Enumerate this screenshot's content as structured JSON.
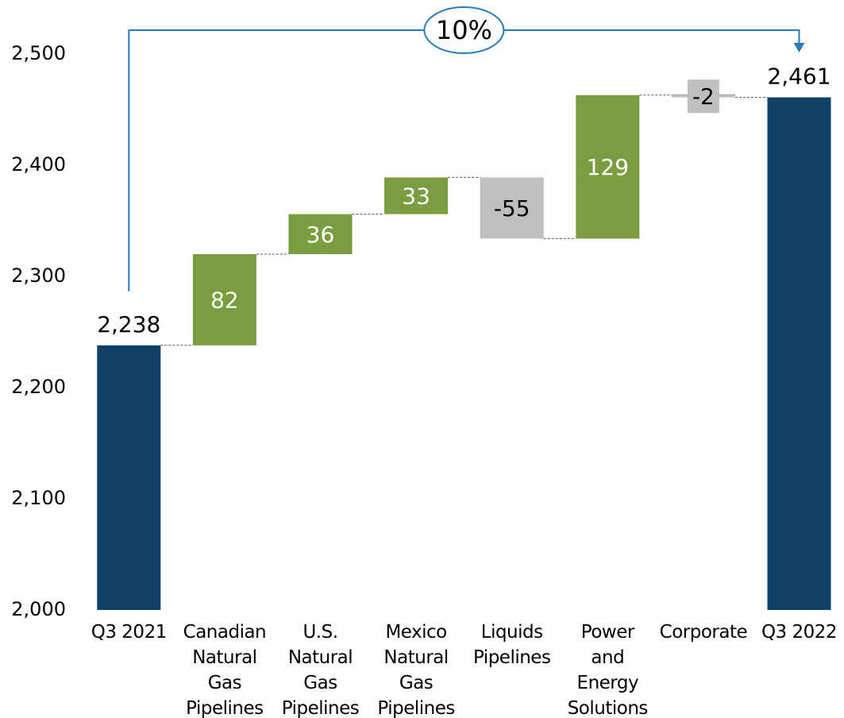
{
  "chart_data": {
    "type": "waterfall",
    "categories": [
      "Q3 2021",
      "Canadian\nNatural\nGas\nPipelines",
      "U.S.\nNatural\nGas\nPipelines",
      "Mexico\nNatural\nGas\nPipelines",
      "Liquids\nPipelines",
      "Power\nand\nEnergy\nSolutions",
      "Corporate",
      "Q3 2022"
    ],
    "values": [
      2238,
      82,
      36,
      33,
      -55,
      129,
      -2,
      2461
    ],
    "value_labels": [
      "2,238",
      "82",
      "36",
      "33",
      "-55",
      "129",
      "-2",
      "2,461"
    ],
    "measure": [
      "absolute",
      "relative",
      "relative",
      "relative",
      "relative",
      "relative",
      "relative",
      "total"
    ],
    "colors": {
      "total": "#0f3e66",
      "increase": "#7a9e3f",
      "decrease": "#bfbfbf"
    },
    "annotation": "10%",
    "ylim": [
      2000,
      2500
    ],
    "yticks": [
      {
        "value": 2000,
        "label": "2,000"
      },
      {
        "value": 2100,
        "label": "2,100"
      },
      {
        "value": 2200,
        "label": "2,200"
      },
      {
        "value": 2300,
        "label": "2,300"
      },
      {
        "value": 2400,
        "label": "2,400"
      },
      {
        "value": 2500,
        "label": "2,500"
      }
    ]
  }
}
